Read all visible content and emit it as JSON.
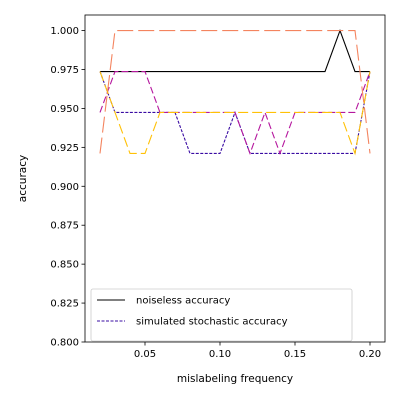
{
  "chart_data": {
    "type": "line",
    "xlabel": "mislabeling frequency",
    "ylabel": "accuracy",
    "xlim": [
      0.01,
      0.21
    ],
    "ylim": [
      0.8,
      1.01
    ],
    "x_ticks": [
      0.05,
      0.1,
      0.15,
      0.2
    ],
    "x_tick_labels": [
      "0.05",
      "0.10",
      "0.15",
      "0.20"
    ],
    "y_ticks": [
      0.8,
      0.825,
      0.85,
      0.875,
      0.9,
      0.925,
      0.95,
      0.975,
      1.0
    ],
    "y_tick_labels": [
      "0.800",
      "0.825",
      "0.850",
      "0.875",
      "0.900",
      "0.925",
      "0.950",
      "0.975",
      "1.000"
    ],
    "grid": false,
    "legend_position": "lower-left",
    "x": [
      0.02,
      0.03,
      0.04,
      0.05,
      0.06,
      0.07,
      0.08,
      0.09,
      0.1,
      0.11,
      0.12,
      0.13,
      0.14,
      0.15,
      0.16,
      0.17,
      0.18,
      0.19,
      0.2
    ],
    "series": [
      {
        "name": "noiseless accuracy",
        "in_legend": true,
        "color": "#000000",
        "dash": "",
        "values": [
          0.9737,
          0.9737,
          0.9737,
          0.9737,
          0.9737,
          0.9737,
          0.9737,
          0.9737,
          0.9737,
          0.9737,
          0.9737,
          0.9737,
          0.9737,
          0.9737,
          0.9737,
          0.9737,
          1.0,
          0.9737,
          0.9737
        ]
      },
      {
        "name": "simulated stochastic accuracy",
        "in_legend": true,
        "color": "#3a0ca3",
        "dash": "3,1.5",
        "values": [
          0.9737,
          0.9474,
          0.9474,
          0.9474,
          0.9474,
          0.9474,
          0.9211,
          0.9211,
          0.9211,
          0.9474,
          0.9211,
          0.9211,
          0.9211,
          0.9211,
          0.9211,
          0.9211,
          0.9211,
          0.9211,
          0.9737
        ]
      },
      {
        "in_legend": false,
        "color": "#b5179e",
        "dash": "7,3",
        "values": [
          0.9474,
          0.9737,
          0.9737,
          0.9737,
          0.9474,
          0.9474,
          0.9474,
          0.9474,
          0.9474,
          0.9474,
          0.9211,
          0.9474,
          0.9211,
          0.9474,
          0.9474,
          0.9474,
          0.9474,
          0.9474,
          0.9737
        ]
      },
      {
        "in_legend": false,
        "color": "#ffc107",
        "dash": "10,4",
        "values": [
          0.9737,
          0.9474,
          0.9211,
          0.9211,
          0.9474,
          0.9474,
          0.9474,
          0.9474,
          0.9474,
          0.9474,
          0.9474,
          0.9474,
          0.9474,
          0.9474,
          0.9474,
          0.9474,
          0.9474,
          0.9211,
          0.9737
        ]
      },
      {
        "in_legend": false,
        "color": "#f4845f",
        "dash": "16,5",
        "values": [
          0.9211,
          1.0,
          1.0,
          1.0,
          1.0,
          1.0,
          1.0,
          1.0,
          1.0,
          1.0,
          1.0,
          1.0,
          1.0,
          1.0,
          1.0,
          1.0,
          1.0,
          1.0,
          0.9211
        ]
      }
    ]
  }
}
